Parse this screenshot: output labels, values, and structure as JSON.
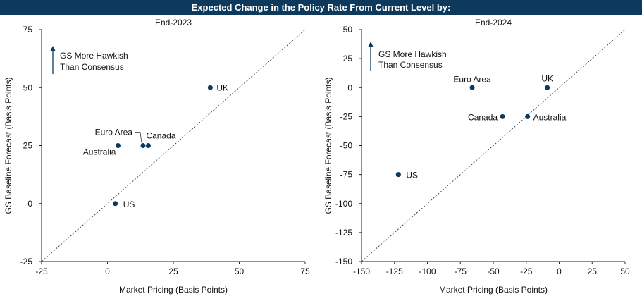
{
  "figure_title": "Expected Change in the Policy Rate From Current Level by:",
  "colors": {
    "title_bg": "#0d3a5c",
    "point": "#0d3a5c",
    "arrow": "#0d3a5c",
    "diagonal": "#333333"
  },
  "chart_data": [
    {
      "type": "scatter",
      "title": "End-2023",
      "xlabel": "Market Pricing (Basis Points)",
      "ylabel": "GS Baseline Forecast (Basis Points)",
      "xlim": [
        -25,
        75
      ],
      "ylim": [
        -25,
        75
      ],
      "xticks": [
        -25,
        0,
        25,
        50,
        75
      ],
      "yticks": [
        -25,
        0,
        25,
        50,
        75
      ],
      "diagonal": true,
      "annotation": {
        "line1": "GS More Hawkish",
        "line2": "Than Consensus"
      },
      "points": [
        {
          "label": "UK",
          "x": 39,
          "y": 50
        },
        {
          "label": "Euro Area",
          "x": 13.5,
          "y": 25
        },
        {
          "label": "Canada",
          "x": 15.5,
          "y": 25
        },
        {
          "label": "Australia",
          "x": 4,
          "y": 25
        },
        {
          "label": "US",
          "x": 3,
          "y": 0
        }
      ]
    },
    {
      "type": "scatter",
      "title": "End-2024",
      "xlabel": "Market Pricing (Basis Points)",
      "ylabel": "GS Baseline Forecast (Basis Points)",
      "xlim": [
        -150,
        50
      ],
      "ylim": [
        -150,
        50
      ],
      "xticks": [
        -150,
        -125,
        -100,
        -75,
        -50,
        -25,
        0,
        25,
        50
      ],
      "yticks": [
        -150,
        -125,
        -100,
        -75,
        -50,
        -25,
        0,
        25,
        50
      ],
      "diagonal": true,
      "annotation": {
        "line1": "GS More Hawkish",
        "line2": "Than Consensus"
      },
      "points": [
        {
          "label": "Euro Area",
          "x": -66,
          "y": 0
        },
        {
          "label": "UK",
          "x": -9,
          "y": 0
        },
        {
          "label": "Canada",
          "x": -43,
          "y": -25
        },
        {
          "label": "Australia",
          "x": -24,
          "y": -25
        },
        {
          "label": "US",
          "x": -122,
          "y": -75
        }
      ]
    }
  ]
}
